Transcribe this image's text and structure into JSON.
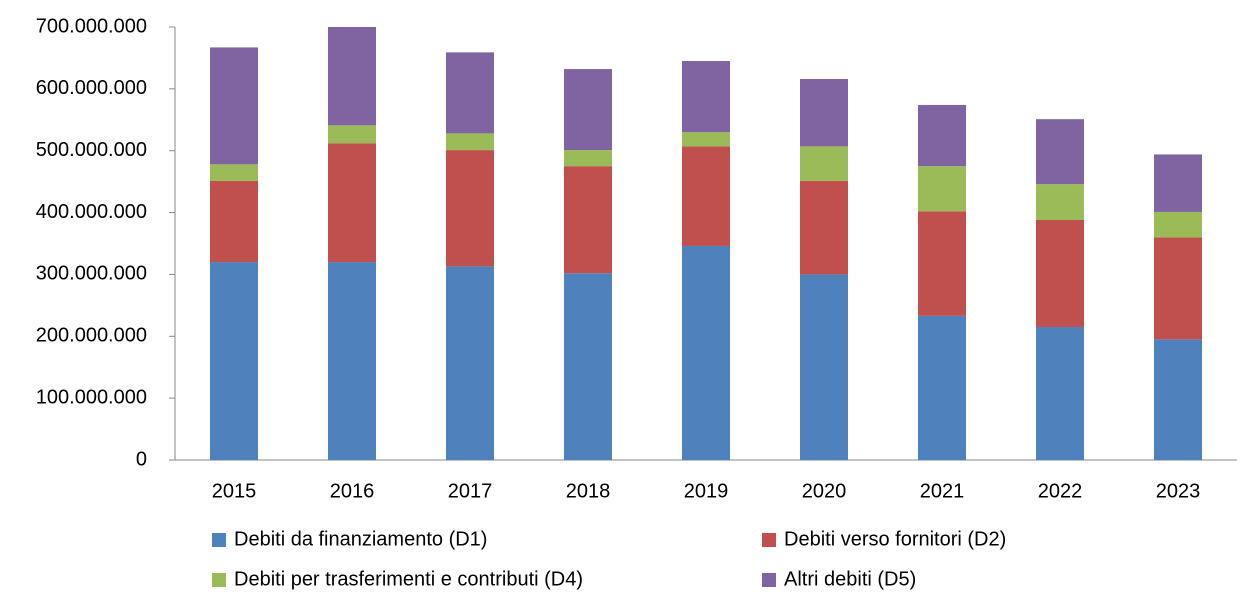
{
  "chart_data": {
    "type": "stacked_bar",
    "categories": [
      "2015",
      "2016",
      "2017",
      "2018",
      "2019",
      "2020",
      "2021",
      "2022",
      "2023"
    ],
    "series": [
      {
        "name": "Debiti da finanziamento (D1)",
        "color": "#4f81bd",
        "values": [
          320000000,
          320000000,
          313000000,
          302000000,
          346000000,
          300000000,
          233000000,
          215000000,
          195000000
        ]
      },
      {
        "name": "Debiti verso fornitori (D2)",
        "color": "#c0504d",
        "values": [
          131000000,
          192000000,
          188000000,
          173000000,
          161000000,
          151000000,
          169000000,
          173000000,
          165000000
        ]
      },
      {
        "name": "Debiti per trasferimenti e contributi (D4)",
        "color": "#9bbb59",
        "values": [
          27000000,
          29000000,
          27000000,
          26000000,
          23000000,
          56000000,
          73000000,
          58000000,
          41000000
        ]
      },
      {
        "name": "Altri debiti (D5)",
        "color": "#8064a2",
        "values": [
          189000000,
          159000000,
          131000000,
          131000000,
          115000000,
          109000000,
          99000000,
          105000000,
          93000000
        ]
      }
    ],
    "ylim": [
      0,
      700000000
    ],
    "yticks": [
      0,
      {
        "value": 100000000,
        "label": "100.000.000"
      },
      {
        "value": 200000000,
        "label": "200.000.000"
      },
      {
        "value": 300000000,
        "label": "300.000.000"
      },
      {
        "value": 400000000,
        "label": "400.000.000"
      },
      {
        "value": 500000000,
        "label": "500.000.000"
      },
      {
        "value": 600000000,
        "label": "600.000.000"
      },
      {
        "value": 700000000,
        "label": "700.000.000"
      }
    ],
    "legend": "bottom"
  }
}
